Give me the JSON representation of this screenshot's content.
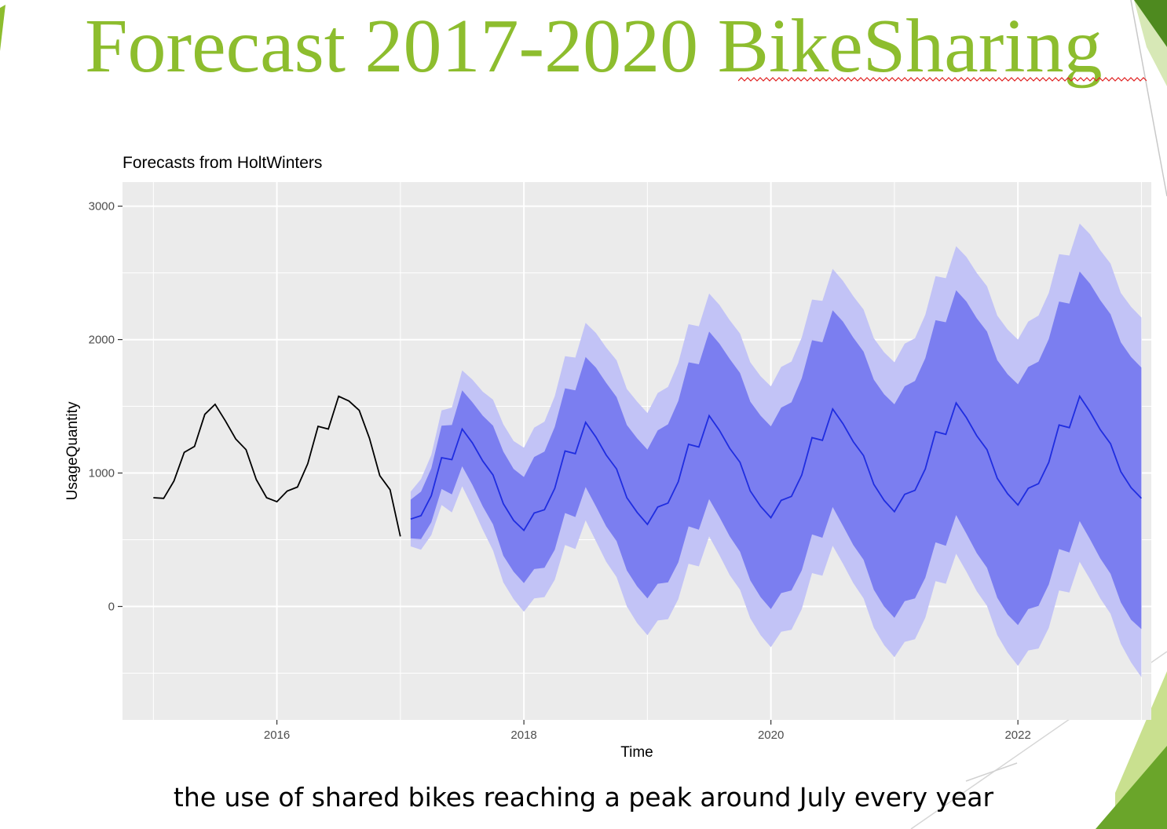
{
  "slide": {
    "title": "Forecast 2017-2020 BikeSharing",
    "caption": "the use of shared bikes reaching a peak around July every year",
    "colors": {
      "title": "#8dbd2e",
      "accent_green": "#6aa52a",
      "light_green": "#c9e08f",
      "panel": "#ebebeb",
      "grid": "#ffffff",
      "history_line": "#000000",
      "forecast_line": "#1f2de0",
      "band_80": "#7b7ef0",
      "band_95": "#c2c3f6"
    }
  },
  "chart_data": {
    "type": "line",
    "title": "Forecasts from HoltWinters",
    "xlabel": "Time",
    "ylabel": "UsageQuantity",
    "xlim": [
      2014.75,
      2023.08
    ],
    "ylim": [
      -850,
      3180
    ],
    "x_ticks": [
      2016,
      2018,
      2020,
      2022
    ],
    "x_tick_labels": [
      "2016",
      "2018",
      "2020",
      "2022"
    ],
    "y_ticks": [
      0,
      1000,
      2000,
      3000
    ],
    "y_tick_labels": [
      "0",
      "1000",
      "2000",
      "3000"
    ],
    "grid": true,
    "history": {
      "start": 2015.0,
      "step": 0.083333,
      "values": [
        815,
        810,
        940,
        1155,
        1200,
        1440,
        1515,
        1390,
        1255,
        1175,
        950,
        815,
        785,
        865,
        895,
        1070,
        1350,
        1330,
        1575,
        1540,
        1470,
        1260,
        980,
        875,
        525
      ]
    },
    "forecast": {
      "start": 2017.083333,
      "step": 0.083333,
      "mean": [
        655,
        680,
        830,
        1115,
        1100,
        1330,
        1225,
        1090,
        985,
        770,
        645,
        570,
        700,
        725,
        885,
        1165,
        1145,
        1380,
        1270,
        1135,
        1030,
        815,
        705,
        615,
        745,
        775,
        935,
        1215,
        1195,
        1430,
        1320,
        1185,
        1080,
        865,
        750,
        665,
        795,
        825,
        985,
        1265,
        1245,
        1480,
        1370,
        1235,
        1130,
        915,
        795,
        710,
        840,
        870,
        1030,
        1310,
        1290,
        1525,
        1415,
        1280,
        1175,
        960,
        845,
        760,
        885,
        920,
        1080,
        1360,
        1340,
        1575,
        1460,
        1325,
        1220,
        1010,
        890,
        810
      ],
      "lo80": [
        510,
        505,
        630,
        880,
        840,
        1050,
        910,
        750,
        615,
        380,
        260,
        175,
        280,
        290,
        425,
        700,
        670,
        895,
        750,
        600,
        490,
        270,
        150,
        60,
        170,
        180,
        330,
        600,
        575,
        805,
        670,
        525,
        410,
        195,
        70,
        -20,
        100,
        120,
        270,
        540,
        515,
        745,
        605,
        460,
        350,
        125,
        0,
        -85,
        40,
        60,
        215,
        480,
        455,
        685,
        545,
        400,
        290,
        65,
        -60,
        -140,
        -20,
        5,
        165,
        430,
        405,
        640,
        505,
        360,
        245,
        30,
        -100,
        -170
      ],
      "hi80": [
        800,
        860,
        1035,
        1355,
        1360,
        1620,
        1530,
        1430,
        1355,
        1160,
        1030,
        970,
        1120,
        1160,
        1345,
        1635,
        1620,
        1870,
        1790,
        1675,
        1570,
        1360,
        1260,
        1175,
        1320,
        1365,
        1540,
        1830,
        1815,
        2060,
        1970,
        1855,
        1750,
        1535,
        1430,
        1350,
        1490,
        1530,
        1710,
        1995,
        1980,
        2220,
        2135,
        2015,
        1910,
        1700,
        1590,
        1515,
        1650,
        1690,
        1860,
        2145,
        2130,
        2370,
        2285,
        2160,
        2060,
        1845,
        1740,
        1665,
        1795,
        1835,
        2005,
        2285,
        2270,
        2510,
        2420,
        2295,
        2190,
        1980,
        1870,
        1790
      ],
      "lo95": [
        450,
        425,
        535,
        760,
        705,
        900,
        745,
        575,
        420,
        180,
        55,
        -40,
        60,
        70,
        200,
        460,
        430,
        645,
        490,
        335,
        220,
        0,
        -125,
        -215,
        -105,
        -95,
        55,
        320,
        300,
        525,
        385,
        235,
        125,
        -90,
        -215,
        -305,
        -190,
        -175,
        -20,
        250,
        230,
        455,
        320,
        175,
        60,
        -160,
        -290,
        -380,
        -265,
        -245,
        -85,
        190,
        170,
        395,
        260,
        115,
        5,
        -215,
        -345,
        -445,
        -330,
        -315,
        -160,
        120,
        105,
        335,
        205,
        60,
        -55,
        -280,
        -420,
        -530
      ],
      "hi95": [
        860,
        955,
        1135,
        1470,
        1490,
        1770,
        1700,
        1610,
        1550,
        1365,
        1240,
        1190,
        1340,
        1385,
        1575,
        1875,
        1865,
        2125,
        2050,
        1940,
        1845,
        1630,
        1535,
        1450,
        1600,
        1645,
        1825,
        2115,
        2100,
        2345,
        2260,
        2145,
        2045,
        1830,
        1725,
        1650,
        1795,
        1835,
        2015,
        2300,
        2290,
        2530,
        2440,
        2325,
        2225,
        2010,
        1905,
        1830,
        1970,
        2010,
        2185,
        2475,
        2460,
        2700,
        2620,
        2500,
        2400,
        2180,
        2075,
        2000,
        2135,
        2180,
        2350,
        2640,
        2630,
        2870,
        2790,
        2670,
        2570,
        2350,
        2245,
        2165
      ]
    }
  }
}
